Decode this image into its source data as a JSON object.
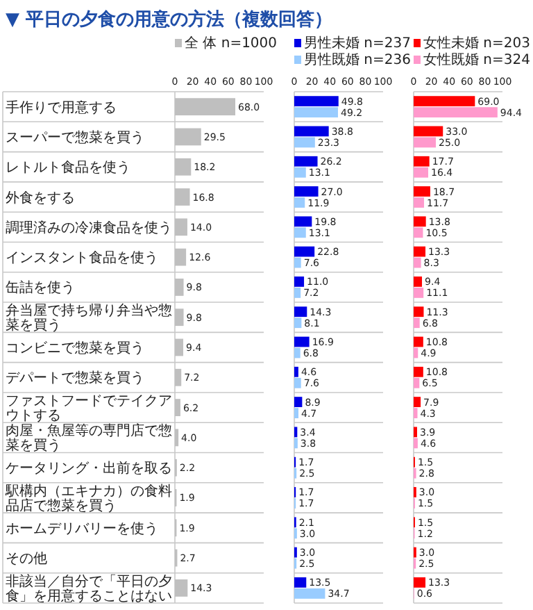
{
  "chart_data": [
    {
      "type": "bar",
      "orientation": "horizontal",
      "title": "▼ 平日の夕食の用意の方法（複数回答）",
      "categories": [
        "手作りで用意する",
        "スーパーで惣菜を買う",
        "レトルト食品を使う",
        "外食をする",
        "調理済みの冷凍食品を使う",
        "インスタント食品を使う",
        "缶詰を使う",
        "弁当屋で持ち帰り弁当や惣菜を買う",
        "コンビニで惣菜を買う",
        "デパートで惣菜を買う",
        "ファストフードでテイクアウトする",
        "肉屋・魚屋等の専門店で惣菜を買う",
        "ケータリング・出前を取る",
        "駅構内（エキナカ）の食料品店で惣菜を買う",
        "ホームデリバリーを使う",
        "その他",
        "非該当／自分で「平日の夕食」を用意することはない"
      ],
      "series": [
        {
          "name": "全 体 n=1000",
          "color": "#bfbfbf",
          "values": [
            68.0,
            29.5,
            18.2,
            16.8,
            14.0,
            12.6,
            9.8,
            9.8,
            9.4,
            7.2,
            6.2,
            4.0,
            2.2,
            1.9,
            1.9,
            2.7,
            14.3
          ],
          "value_labels": [
            "68.0",
            "29.5",
            "18.2",
            "16.8",
            "14.0",
            "12.6",
            "9.8",
            "9.8",
            "9.4",
            "7.2",
            "6.2",
            "4.0",
            "2.2",
            "1.9",
            "1.9",
            "2.7",
            "14.3"
          ]
        }
      ],
      "xlim": [
        0,
        100
      ],
      "xticks": [
        0,
        20,
        40,
        60,
        80,
        100
      ],
      "grid": "y",
      "legend": "top"
    },
    {
      "type": "bar",
      "orientation": "horizontal",
      "categories": [
        null,
        null,
        null,
        null,
        null,
        null,
        null,
        null,
        null,
        null,
        null,
        null,
        null,
        null,
        null,
        null,
        null
      ],
      "series": [
        {
          "name": "男性未婚 n=237",
          "color": "#0000e6",
          "values": [
            49.8,
            38.8,
            26.2,
            27.0,
            19.8,
            22.8,
            11.0,
            14.3,
            16.9,
            4.6,
            8.9,
            3.4,
            1.7,
            1.7,
            2.1,
            3.0,
            13.5
          ],
          "value_labels": [
            "49.8",
            "38.8",
            "26.2",
            "27.0",
            "19.8",
            "22.8",
            "11.0",
            "14.3",
            "16.9",
            "4.6",
            "8.9",
            "3.4",
            "1.7",
            "1.7",
            "2.1",
            "3.0",
            "13.5"
          ]
        },
        {
          "name": "男性既婚 n=236",
          "color": "#99ccff",
          "values": [
            49.2,
            23.3,
            13.1,
            11.9,
            13.1,
            7.6,
            7.2,
            8.1,
            6.8,
            7.6,
            4.7,
            3.8,
            2.5,
            1.7,
            3.0,
            2.5,
            34.7
          ],
          "value_labels": [
            "49.2",
            "23.3",
            "13.1",
            "11.9",
            "13.1",
            "7.6",
            "7.2",
            "8.1",
            "6.8",
            "7.6",
            "4.7",
            "3.8",
            "2.5",
            "1.7",
            "3.0",
            "2.5",
            "34.7"
          ]
        }
      ],
      "xlim": [
        0,
        100
      ],
      "xticks": [
        0,
        20,
        40,
        60,
        80,
        100
      ],
      "grid": "y",
      "legend": "top",
      "tick_labels": "x"
    },
    {
      "type": "bar",
      "orientation": "horizontal",
      "categories": [
        null,
        null,
        null,
        null,
        null,
        null,
        null,
        null,
        null,
        null,
        null,
        null,
        null,
        null,
        null,
        null,
        null
      ],
      "series": [
        {
          "name": "女性未婚 n=203",
          "color": "#ff0000",
          "values": [
            69.0,
            33.0,
            17.7,
            18.7,
            13.8,
            13.3,
            9.4,
            11.3,
            10.8,
            10.8,
            7.9,
            3.9,
            1.5,
            3.0,
            1.5,
            3.0,
            13.3
          ],
          "value_labels": [
            "69.0",
            "33.0",
            "17.7",
            "18.7",
            "13.8",
            "13.3",
            "9.4",
            "11.3",
            "10.8",
            "10.8",
            "7.9",
            "3.9",
            "1.5",
            "3.0",
            "1.5",
            "3.0",
            "13.3"
          ]
        },
        {
          "name": "女性既婚 n=324",
          "color": "#ff99cc",
          "values": [
            94.4,
            25.0,
            16.4,
            11.7,
            10.5,
            8.3,
            11.1,
            6.8,
            4.9,
            6.5,
            4.3,
            4.6,
            2.8,
            1.5,
            1.2,
            2.5,
            0.6
          ],
          "value_labels": [
            "94.4",
            "25.0",
            "16.4",
            "11.7",
            "10.5",
            "8.3",
            "11.1",
            "6.8",
            "4.9",
            "6.5",
            "4.3",
            "4.6",
            "2.8",
            "1.5",
            "1.2",
            "2.5",
            "0.6"
          ]
        }
      ],
      "xlim": [
        0,
        100
      ],
      "xticks": [
        0,
        20,
        40,
        60,
        80,
        100
      ],
      "grid": "y",
      "legend": "top",
      "tick_labels": "x"
    }
  ]
}
